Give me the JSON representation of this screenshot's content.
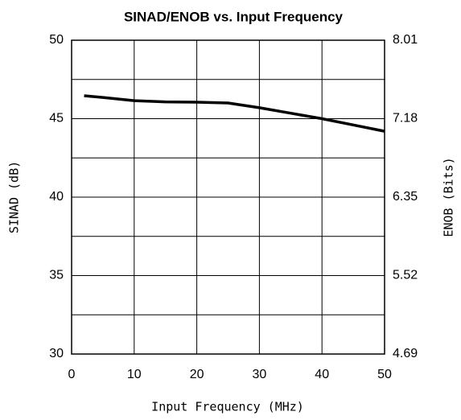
{
  "chart_data": {
    "type": "line",
    "title": "SINAD/ENOB vs. Input Frequency",
    "xlabel": "Input Frequency (MHz)",
    "ylabel": "SINAD (dB)",
    "y2label": "ENOB (Bits)",
    "x": [
      2,
      5,
      10,
      15,
      20,
      25,
      30,
      35,
      40,
      45,
      50
    ],
    "series": [
      {
        "name": "SINAD",
        "color": "#000000",
        "values": [
          46.46,
          46.35,
          46.15,
          46.07,
          46.05,
          46.0,
          45.7,
          45.35,
          45.0,
          44.6,
          44.2
        ]
      }
    ],
    "xlim": [
      0,
      50
    ],
    "xticks": [
      0,
      10,
      20,
      30,
      40,
      50
    ],
    "ylim": [
      30,
      50
    ],
    "yticks": [
      30,
      35,
      40,
      45,
      50
    ],
    "minor_yticks": [
      32.5,
      37.5,
      42.5,
      47.5
    ],
    "y2lim": [
      4.69,
      8.01
    ],
    "y2ticks": [
      4.69,
      5.52,
      6.35,
      7.18,
      8.01
    ],
    "grid": true
  }
}
